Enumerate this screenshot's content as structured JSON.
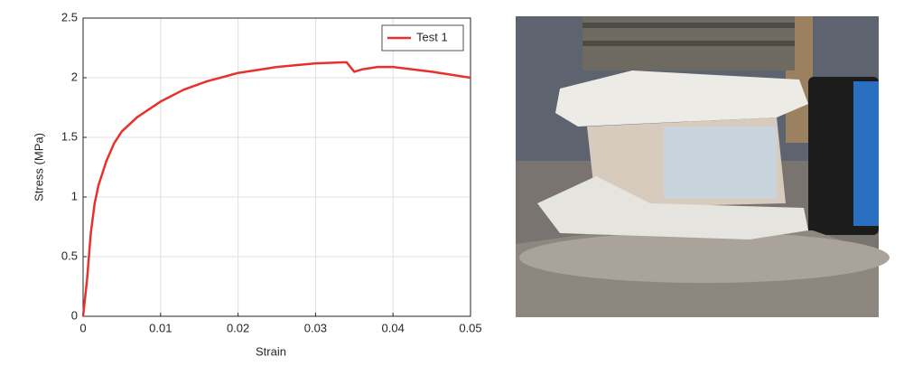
{
  "chart_data": {
    "type": "line",
    "xlabel": "Strain",
    "ylabel": "Stress (MPa)",
    "x": [
      0,
      0.0005,
      0.001,
      0.0015,
      0.002,
      0.003,
      0.004,
      0.005,
      0.007,
      0.01,
      0.013,
      0.016,
      0.02,
      0.025,
      0.03,
      0.034,
      0.035,
      0.036,
      0.038,
      0.04,
      0.045,
      0.05
    ],
    "series": [
      {
        "name": "Test 1",
        "color": "#e8312a",
        "values": [
          0,
          0.3,
          0.7,
          0.95,
          1.1,
          1.3,
          1.45,
          1.55,
          1.67,
          1.8,
          1.9,
          1.97,
          2.04,
          2.09,
          2.12,
          2.13,
          2.05,
          2.07,
          2.09,
          2.09,
          2.05,
          2.0
        ]
      }
    ],
    "xlim": [
      0,
      0.05
    ],
    "xticks": [
      0,
      0.01,
      0.02,
      0.03,
      0.04,
      0.05
    ],
    "ylim": [
      0,
      2.5
    ],
    "yticks": [
      0,
      0.5,
      1,
      1.5,
      2,
      2.5
    ],
    "grid": true,
    "legend": "top-right"
  }
}
